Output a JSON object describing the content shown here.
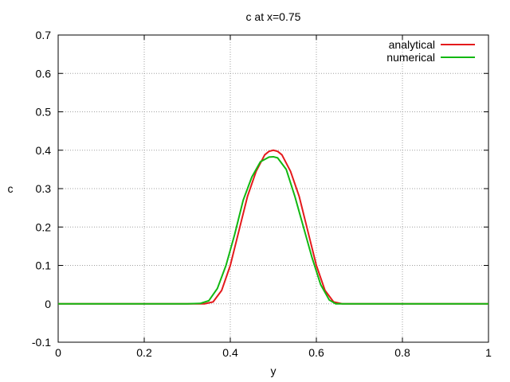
{
  "chart_data": {
    "type": "line",
    "title": "c at x=0.75",
    "xlabel": "y",
    "ylabel": "c",
    "xlim": [
      0,
      1
    ],
    "ylim": [
      -0.1,
      0.7
    ],
    "xticks": [
      0,
      0.2,
      0.4,
      0.6,
      0.8,
      1
    ],
    "xtick_labels": [
      "0",
      "0.2",
      "0.4",
      "0.6",
      "0.8",
      "1"
    ],
    "yticks": [
      -0.1,
      0,
      0.1,
      0.2,
      0.3,
      0.4,
      0.5,
      0.6,
      0.7
    ],
    "ytick_labels": [
      "-0.1",
      "0",
      "0.1",
      "0.2",
      "0.3",
      "0.4",
      "0.5",
      "0.6",
      "0.7"
    ],
    "grid": true,
    "legend_position": "top-right",
    "series": [
      {
        "name": "analytical",
        "color": "#e41a1c",
        "x": [
          0,
          0.1,
          0.2,
          0.3,
          0.34,
          0.36,
          0.38,
          0.4,
          0.42,
          0.44,
          0.46,
          0.48,
          0.49,
          0.5,
          0.51,
          0.52,
          0.54,
          0.56,
          0.58,
          0.6,
          0.62,
          0.64,
          0.66,
          0.7,
          0.8,
          0.9,
          1
        ],
        "y": [
          0,
          0,
          0,
          0,
          0,
          0.005,
          0.035,
          0.1,
          0.19,
          0.28,
          0.345,
          0.388,
          0.397,
          0.4,
          0.397,
          0.388,
          0.345,
          0.28,
          0.19,
          0.1,
          0.035,
          0.005,
          0,
          0,
          0,
          0,
          0
        ]
      },
      {
        "name": "numerical",
        "color": "#11b811",
        "x": [
          0,
          0.1,
          0.2,
          0.3,
          0.33,
          0.35,
          0.37,
          0.39,
          0.41,
          0.43,
          0.45,
          0.47,
          0.49,
          0.5,
          0.51,
          0.53,
          0.55,
          0.57,
          0.59,
          0.61,
          0.63,
          0.645,
          0.66,
          0.7,
          0.8,
          0.9,
          1
        ],
        "y": [
          0,
          0,
          0,
          0,
          0.001,
          0.008,
          0.04,
          0.1,
          0.18,
          0.27,
          0.33,
          0.37,
          0.382,
          0.383,
          0.38,
          0.35,
          0.28,
          0.2,
          0.12,
          0.05,
          0.01,
          0,
          0,
          0,
          0,
          0,
          0
        ]
      }
    ]
  }
}
